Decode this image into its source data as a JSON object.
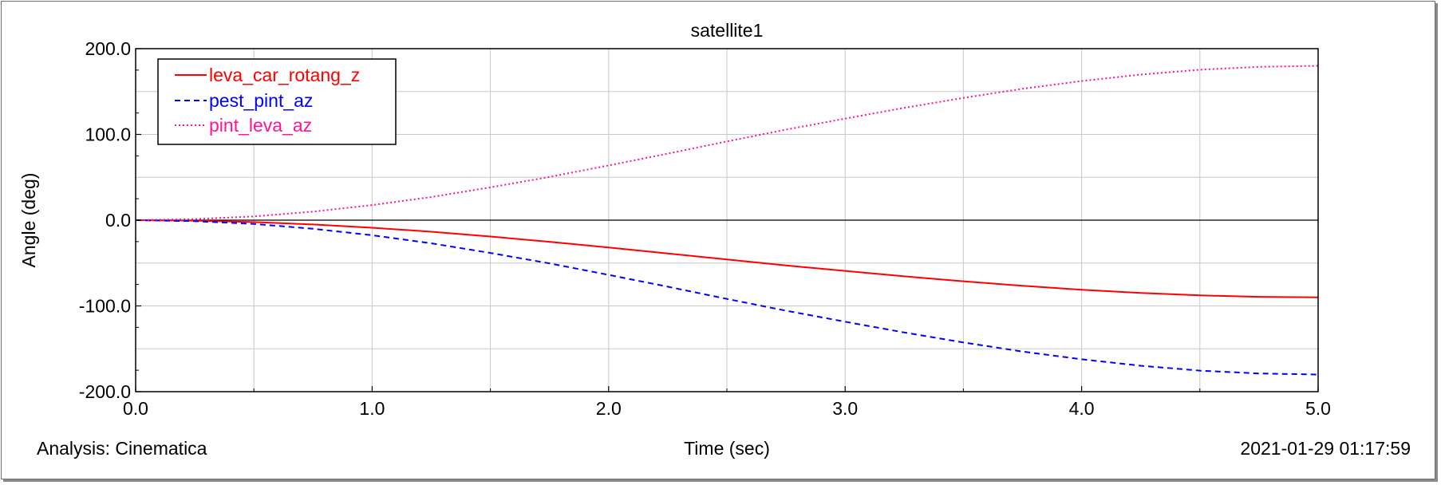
{
  "footer": {
    "analysis_label": "Analysis:  Cinematica",
    "timestamp": "2021-01-29 01:17:59"
  },
  "chart_data": {
    "type": "line",
    "title": "satellite1",
    "xlabel": "Time (sec)",
    "ylabel": "Angle (deg)",
    "xlim": [
      0.0,
      5.0
    ],
    "ylim": [
      -200.0,
      200.0
    ],
    "x_ticks": [
      "0.0",
      "1.0",
      "2.0",
      "3.0",
      "4.0",
      "5.0"
    ],
    "y_ticks": [
      "200.0",
      "100.0",
      "0.0",
      "-100.0",
      "-200.0"
    ],
    "grid": true,
    "legend_position": "top-left",
    "x": [
      0.0,
      0.25,
      0.5,
      0.75,
      1.0,
      1.25,
      1.5,
      1.75,
      2.0,
      2.25,
      2.5,
      2.75,
      3.0,
      3.25,
      3.5,
      3.75,
      4.0,
      4.25,
      4.5,
      4.75,
      5.0
    ],
    "series": [
      {
        "name": "leva_car_rotang_z",
        "color": "#ff0000",
        "style": "solid",
        "values": [
          0.0,
          -0.6,
          -2.2,
          -5.0,
          -8.8,
          -13.5,
          -19.1,
          -25.2,
          -31.9,
          -38.8,
          -45.9,
          -52.8,
          -59.2,
          -65.5,
          -71.3,
          -76.6,
          -81.1,
          -84.9,
          -87.7,
          -89.4,
          -90.0
        ]
      },
      {
        "name": "pest_pint_az",
        "color": "#0000ff",
        "style": "dashed",
        "values": [
          0.0,
          -1.2,
          -4.4,
          -10.0,
          -17.6,
          -27.0,
          -38.2,
          -50.4,
          -63.8,
          -77.6,
          -91.8,
          -105.6,
          -118.4,
          -131.0,
          -142.6,
          -153.2,
          -162.2,
          -169.8,
          -175.4,
          -178.8,
          -180.0
        ]
      },
      {
        "name": "pint_leva_az",
        "color": "#ff1493",
        "style": "dotted",
        "values": [
          0.0,
          1.2,
          4.4,
          10.0,
          17.6,
          27.0,
          38.2,
          50.4,
          63.8,
          77.6,
          91.8,
          105.6,
          118.4,
          131.0,
          142.6,
          153.2,
          162.2,
          169.8,
          175.4,
          178.8,
          180.0
        ]
      }
    ]
  }
}
